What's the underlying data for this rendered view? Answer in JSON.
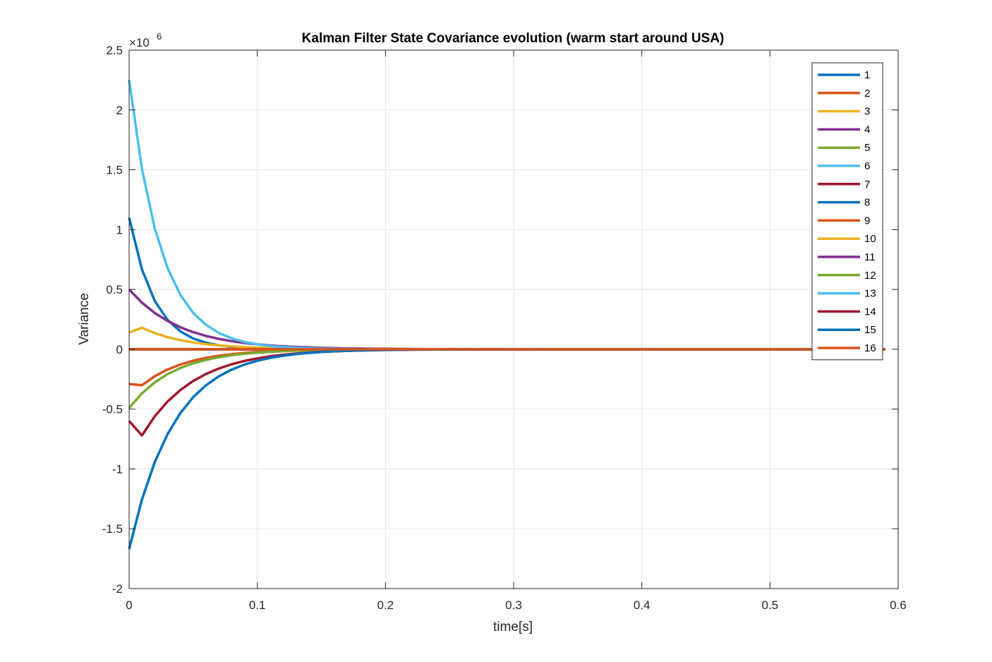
{
  "chart_data": {
    "type": "line",
    "title": "Kalman Filter State Covariance evolution (warm start around USA)",
    "xlabel": "time[s]",
    "ylabel": "Variance",
    "y_multiplier_label": "×10",
    "y_multiplier_exponent": "6",
    "xlim": [
      0,
      0.6
    ],
    "ylim": [
      -2,
      2.5
    ],
    "xticks": [
      0,
      0.1,
      0.2,
      0.3,
      0.4,
      0.5,
      0.6
    ],
    "xtick_labels": [
      "0",
      "0.1",
      "0.2",
      "0.3",
      "0.4",
      "0.5",
      "0.6"
    ],
    "yticks": [
      -2,
      -1.5,
      -1,
      -0.5,
      0,
      0.5,
      1,
      1.5,
      2,
      2.5
    ],
    "ytick_labels": [
      "-2",
      "-1.5",
      "-1",
      "-0.5",
      "0",
      "0.5",
      "1",
      "1.5",
      "2",
      "2.5"
    ],
    "grid": true,
    "legend_position": "top-right",
    "x": [
      0,
      0.01,
      0.02,
      0.03,
      0.04,
      0.05,
      0.06,
      0.07,
      0.08,
      0.09,
      0.1,
      0.11,
      0.12,
      0.13,
      0.14,
      0.15,
      0.16,
      0.17,
      0.18,
      0.19,
      0.2,
      0.21,
      0.22,
      0.23,
      0.24,
      0.25,
      0.26,
      0.27,
      0.28,
      0.29,
      0.3,
      0.31,
      0.32,
      0.33,
      0.34,
      0.35,
      0.36,
      0.37,
      0.38,
      0.39,
      0.4,
      0.41,
      0.42,
      0.43,
      0.44,
      0.45,
      0.46,
      0.47,
      0.48,
      0.49,
      0.5,
      0.51,
      0.52,
      0.53,
      0.54,
      0.55,
      0.56,
      0.57,
      0.58,
      0.59
    ],
    "series": [
      {
        "name": "1",
        "color": "#0072BD",
        "generator": {
          "a": 1.1,
          "tau": 0.02
        }
      },
      {
        "name": "2",
        "color": "#D95319",
        "generator": {
          "a": 0,
          "tau": 0.05
        }
      },
      {
        "name": "3",
        "color": "#EDB120",
        "generator": {
          "a": 0.14,
          "peak": 0.18,
          "tau": 0.035
        }
      },
      {
        "name": "4",
        "color": "#7E2F8E",
        "generator": {
          "a": 0.5,
          "tau": 0.04
        }
      },
      {
        "name": "5",
        "color": "#77AC30",
        "generator": {
          "a": 0,
          "tau": 0.05
        }
      },
      {
        "name": "6",
        "color": "#4DBEEE",
        "generator": {
          "a": 0,
          "tau": 0.05
        }
      },
      {
        "name": "7",
        "color": "#A2142F",
        "generator": {
          "a": 0,
          "tau": 0.05
        }
      },
      {
        "name": "8",
        "color": "#0072BD",
        "generator": {
          "a": 0,
          "tau": 0.05
        }
      },
      {
        "name": "9",
        "color": "#D95319",
        "generator": {
          "a": -0.29,
          "peak": -0.3,
          "tau": 0.035
        }
      },
      {
        "name": "10",
        "color": "#EDB120",
        "generator": {
          "a": 0,
          "tau": 0.05
        }
      },
      {
        "name": "11",
        "color": "#7E2F8E",
        "generator": {
          "a": 0,
          "tau": 0.05
        }
      },
      {
        "name": "12",
        "color": "#77AC30",
        "generator": {
          "a": -0.49,
          "peak": -0.49,
          "tau": 0.035
        }
      },
      {
        "name": "13",
        "color": "#4DBEEE",
        "generator": {
          "a": 2.25,
          "tau": 0.025
        }
      },
      {
        "name": "14",
        "color": "#A2142F",
        "generator": {
          "a": -0.6,
          "peak": -0.72,
          "tau": 0.04
        }
      },
      {
        "name": "15",
        "color": "#0072BD",
        "generator": {
          "a": -1.67,
          "tau": 0.035
        }
      },
      {
        "name": "16",
        "color": "#D95319",
        "generator": {
          "a": 0,
          "tau": 0.05
        }
      }
    ]
  }
}
